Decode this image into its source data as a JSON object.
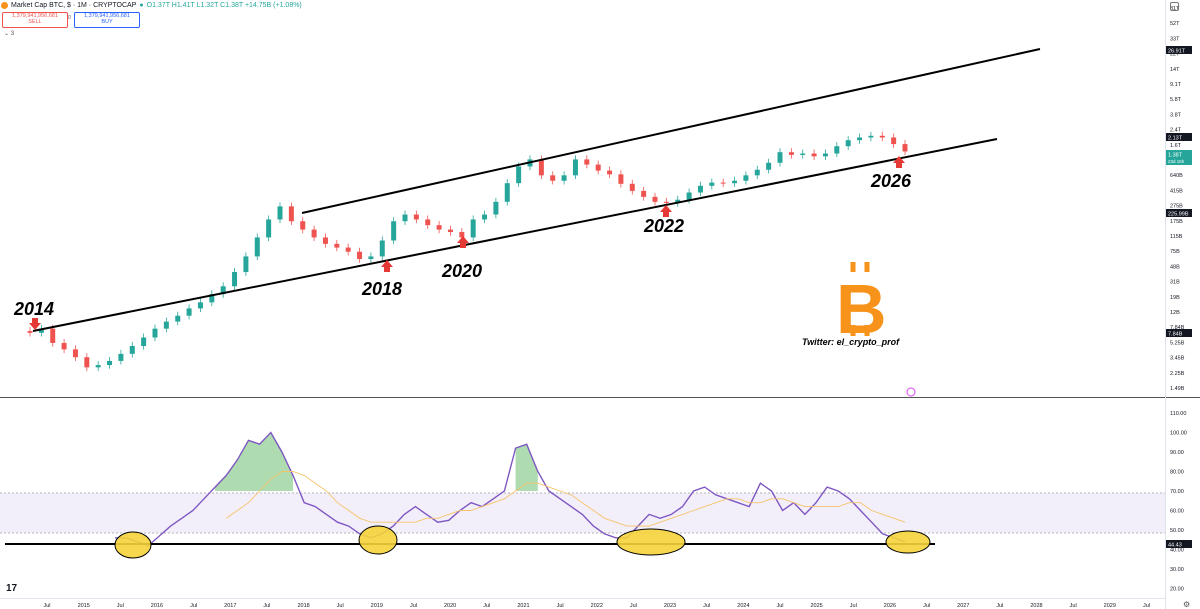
{
  "header": {
    "title": "Market Cap BTC, $ · 1M · CRYPTOCAP",
    "ohlc": "O1.37T H1.41T L1.32T C1.38T +14.75B (+1.08%)",
    "sell_price": "1,379,941,956,681",
    "sell_label": "SELL",
    "buy_price": "1,379,941,956,681",
    "buy_label": "BUY",
    "spread": "0",
    "indicator_count": "3"
  },
  "annotations": {
    "y2014": "2014",
    "y2018": "2018",
    "y2020": "2020",
    "y2022": "2022",
    "y2026": "2026",
    "twitter": "Twitter: el_crypto_prof",
    "logo_letter": "B"
  },
  "colors": {
    "up": "#26a69a",
    "down": "#ef5350",
    "rsi": "#7e57c2",
    "rsi_ma": "#f5c36b",
    "accent": "#f7931a"
  },
  "chart_data": [
    {
      "type": "candlestick",
      "title": "Market Cap BTC, $ · 1M · CRYPTOCAP",
      "y_scale": "log",
      "y_ticks": [
        "81T",
        "52T",
        "33T",
        "22T",
        "14T",
        "9.1T",
        "5.8T",
        "3.8T",
        "2.4T",
        "1.6T",
        "1.0T",
        "640B",
        "415B",
        "275B",
        "175B",
        "115B",
        "75B",
        "48B",
        "31B",
        "19B",
        "12B",
        "7.84B",
        "5.25B",
        "3.45B",
        "2.25B",
        "1.49B"
      ],
      "price_labels": {
        "upper": "26.91T",
        "prev": "2.13T",
        "last": "1.38T",
        "last_sub": "23d 15h",
        "line": "225.99B",
        "low": "7.84B"
      },
      "x_ticks": [
        "Jul",
        "2015",
        "Jul",
        "2016",
        "Jul",
        "2017",
        "Jul",
        "2018",
        "Jul",
        "2019",
        "Jul",
        "2020",
        "Jul",
        "2021",
        "Jul",
        "2022",
        "Jul",
        "2023",
        "Jul",
        "2024",
        "Jul",
        "2025",
        "Jul",
        "2026",
        "Jul",
        "2027",
        "Jul",
        "2028",
        "Jul",
        "2029",
        "Jul"
      ],
      "candles_close_approx": [
        8,
        9,
        6,
        5,
        4,
        3,
        3.2,
        3.6,
        4.4,
        5.5,
        7,
        9,
        11,
        13,
        16,
        19,
        24,
        30,
        45,
        70,
        120,
        200,
        290,
        190,
        150,
        120,
        100,
        90,
        80,
        65,
        70,
        110,
        190,
        230,
        200,
        170,
        150,
        140,
        120,
        200,
        230,
        330,
        560,
        900,
        1100,
        700,
        600,
        700,
        1100,
        950,
        800,
        720,
        550,
        450,
        380,
        330,
        320,
        350,
        430,
        520,
        570,
        560,
        600,
        700,
        820,
        1000,
        1350,
        1250,
        1300,
        1200,
        1300,
        1600,
        1900,
        2050,
        2150,
        2050,
        1700,
        1380
      ],
      "channel": {
        "upper_start": "~9B (2014)",
        "upper_end": "~30T (2028)",
        "lower_start": "~8B (2014)",
        "lower_end": "~2.1T (2027)"
      }
    },
    {
      "type": "line",
      "title": "RSI",
      "y_ticks": [
        "110.00",
        "100.00",
        "90.00",
        "80.00",
        "70.00",
        "60.00",
        "50.00",
        "40.00",
        "30.00",
        "20.00"
      ],
      "last_value": "44.43",
      "bands": {
        "upper": 70,
        "lower": 50
      },
      "support_level": 44.43,
      "series": [
        {
          "name": "RSI",
          "values": [
            46,
            46,
            44,
            42,
            47,
            52,
            56,
            60,
            66,
            72,
            78,
            86,
            96,
            94,
            100,
            90,
            78,
            64,
            62,
            58,
            54,
            52,
            48,
            46,
            48,
            52,
            58,
            62,
            58,
            54,
            55,
            60,
            64,
            62,
            66,
            70,
            92,
            94,
            80,
            70,
            66,
            62,
            58,
            52,
            48,
            46,
            46,
            52,
            58,
            56,
            58,
            62,
            70,
            72,
            68,
            66,
            64,
            62,
            74,
            70,
            60,
            64,
            58,
            64,
            72,
            70,
            66,
            60,
            54,
            48,
            46,
            44
          ]
        },
        {
          "name": "RSI MA",
          "values": [
            null,
            null,
            null,
            null,
            null,
            null,
            null,
            null,
            null,
            null,
            56,
            60,
            64,
            70,
            76,
            80,
            80,
            78,
            74,
            70,
            64,
            60,
            56,
            54,
            54,
            54,
            54,
            54,
            56,
            56,
            58,
            60,
            60,
            62,
            64,
            66,
            70,
            74,
            74,
            72,
            70,
            68,
            64,
            60,
            56,
            54,
            52,
            52,
            52,
            54,
            56,
            58,
            60,
            62,
            64,
            66,
            66,
            64,
            64,
            66,
            66,
            64,
            62,
            62,
            62,
            62,
            64,
            64,
            60,
            58,
            56,
            54
          ]
        }
      ]
    }
  ]
}
